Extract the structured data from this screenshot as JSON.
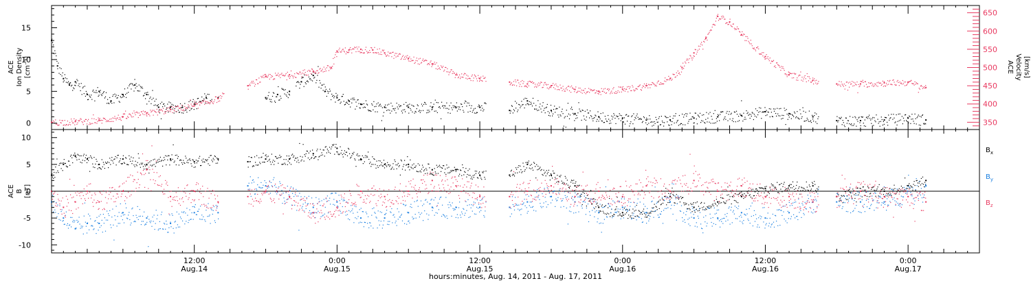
{
  "colors": {
    "density": "#000000",
    "velocity": "#e8385f",
    "bx": "#000000",
    "by": "#1a7fe0",
    "bz": "#e8385f"
  },
  "xaxis": {
    "title": "hours:minutes, Aug. 14, 2011 - Aug. 17, 2011",
    "range_hours": [
      0,
      78
    ],
    "ticks": [
      {
        "hour": 12,
        "time": "12:00",
        "date": "Aug.14"
      },
      {
        "hour": 24,
        "time": "0:00",
        "date": "Aug.15"
      },
      {
        "hour": 36,
        "time": "12:00",
        "date": "Aug.15"
      },
      {
        "hour": 48,
        "time": "0:00",
        "date": "Aug.16"
      },
      {
        "hour": 60,
        "time": "12:00",
        "date": "Aug.16"
      },
      {
        "hour": 72,
        "time": "0:00",
        "date": "Aug.17"
      }
    ]
  },
  "chart_data": [
    {
      "type": "scatter",
      "panel": "top",
      "ylabel_left": [
        "ACE",
        "Ion Density",
        "[cm⁻³]"
      ],
      "ylabel_right": [
        "ACE",
        "Velocity",
        "[km/s]"
      ],
      "ylim_left": [
        -1,
        18.5
      ],
      "ylim_right": [
        330,
        670
      ],
      "yticks_left": [
        0,
        5,
        10,
        15
      ],
      "yticks_right": [
        350,
        400,
        450,
        500,
        550,
        600,
        650
      ],
      "series": [
        {
          "key": "density",
          "axis": "left",
          "segments": [
            [
              0,
              13.5
            ],
            [
              18,
              20
            ],
            [
              20.5,
              36.5
            ],
            [
              38.5,
              64.5
            ],
            [
              66,
              73.5
            ]
          ],
          "x": [
            0,
            0.5,
            1,
            1.5,
            2,
            3,
            4,
            5,
            6,
            7,
            8,
            9,
            10,
            11,
            12,
            13,
            14,
            18,
            19,
            20,
            21,
            22,
            23,
            24,
            25,
            26,
            28,
            30,
            32,
            34,
            36,
            38.5,
            40,
            42,
            44,
            46,
            48,
            50,
            52,
            54,
            56,
            58,
            60,
            62,
            64,
            66,
            68,
            70,
            72,
            73.5
          ],
          "y": [
            13,
            9,
            7,
            6,
            6.5,
            4.5,
            5,
            3.5,
            4.5,
            6,
            4.5,
            2.5,
            2.5,
            2.5,
            3,
            4,
            4,
            4,
            4.5,
            5,
            6.5,
            7.5,
            5,
            4,
            3.5,
            3,
            2.5,
            2.5,
            2.5,
            2.5,
            2.5,
            2,
            3.5,
            2,
            1.5,
            1,
            0.8,
            0.5,
            0.5,
            0.8,
            1,
            1.2,
            1.8,
            1.5,
            1,
            0.4,
            0.4,
            0.5,
            0.8,
            0.5
          ]
        },
        {
          "key": "velocity",
          "axis": "right",
          "segments": [
            [
              0,
              14.5
            ],
            [
              16.5,
              36.5
            ],
            [
              38.5,
              64.5
            ],
            [
              66,
              73.5
            ]
          ],
          "x": [
            0,
            2,
            4,
            6,
            8,
            10,
            12,
            14,
            16.5,
            18,
            20,
            22,
            23.5,
            24,
            25,
            26,
            27,
            28,
            30,
            32,
            34,
            36,
            38.5,
            40,
            42,
            44,
            46,
            48,
            50,
            52,
            53,
            54,
            55,
            56,
            57,
            58,
            60,
            62,
            64,
            66,
            68,
            70,
            72,
            73.5
          ],
          "y": [
            350,
            352,
            355,
            365,
            375,
            385,
            395,
            415,
            450,
            475,
            480,
            490,
            500,
            545,
            548,
            550,
            548,
            540,
            525,
            510,
            480,
            470,
            460,
            455,
            450,
            440,
            435,
            440,
            450,
            470,
            500,
            540,
            580,
            640,
            625,
            590,
            530,
            480,
            465,
            455,
            455,
            458,
            460,
            445
          ]
        }
      ]
    },
    {
      "type": "scatter",
      "panel": "bottom",
      "ylabel_left": [
        "ACE",
        "B",
        "[nT]"
      ],
      "ylim": [
        -11.5,
        11.5
      ],
      "yticks": [
        -10,
        -5,
        0,
        5,
        10
      ],
      "zero_line": true,
      "legend": [
        {
          "key": "bx",
          "label": "B",
          "sub": "x"
        },
        {
          "key": "by",
          "label": "B",
          "sub": "y"
        },
        {
          "key": "bz",
          "label": "B",
          "sub": "z"
        }
      ],
      "series": [
        {
          "key": "bx",
          "segments": [
            [
              0,
              14
            ],
            [
              16.5,
              36.5
            ],
            [
              38.5,
              64.5
            ],
            [
              66,
              73.5
            ]
          ],
          "x": [
            0,
            1,
            2,
            3,
            4,
            6,
            8,
            10,
            12,
            14,
            16.5,
            18,
            20,
            22,
            24,
            26,
            28,
            30,
            32,
            34,
            36,
            38.5,
            40,
            42,
            44,
            46,
            48,
            50,
            52,
            54,
            56,
            58,
            60,
            62,
            64,
            66,
            68,
            70,
            72,
            73.5
          ],
          "y": [
            3,
            5,
            6.5,
            6,
            5,
            6,
            5,
            6,
            5.5,
            6,
            5.5,
            6,
            6,
            7,
            8,
            6,
            5,
            5,
            4,
            4,
            3,
            3,
            5,
            3,
            1,
            -3,
            -4,
            -4,
            -1,
            -3,
            -2,
            -1,
            0.5,
            1,
            1,
            -1,
            0,
            0,
            1,
            2
          ]
        },
        {
          "key": "by",
          "segments": [
            [
              0,
              14
            ],
            [
              16.5,
              36.5
            ],
            [
              38.5,
              64.5
            ],
            [
              66,
              73.5
            ]
          ],
          "x": [
            0,
            1,
            2,
            3,
            4,
            6,
            8,
            10,
            12,
            14,
            16.5,
            18,
            20,
            22,
            24,
            26,
            28,
            30,
            32,
            34,
            36,
            38.5,
            40,
            42,
            44,
            46,
            48,
            50,
            52,
            54,
            56,
            58,
            60,
            62,
            64,
            66,
            68,
            70,
            72,
            73.5
          ],
          "y": [
            -2,
            -5,
            -7,
            -6,
            -6,
            -4,
            -5,
            -6,
            -4,
            -4,
            1,
            1,
            -1,
            -3,
            -2,
            -5,
            -5,
            -4,
            -3,
            -3,
            -3,
            -3,
            -2,
            -1,
            -2,
            -4,
            -3,
            -4,
            -2,
            -5,
            -5,
            -4,
            -5,
            -4,
            -2,
            -2,
            -2,
            -2,
            0,
            1
          ]
        },
        {
          "key": "bz",
          "segments": [
            [
              0,
              14
            ],
            [
              16.5,
              36.5
            ],
            [
              38.5,
              64.5
            ],
            [
              66,
              73.5
            ]
          ],
          "x": [
            0,
            1,
            2,
            3,
            4,
            6,
            8,
            10,
            12,
            14,
            16.5,
            18,
            20,
            22,
            24,
            26,
            28,
            30,
            32,
            34,
            36,
            38.5,
            40,
            42,
            44,
            46,
            48,
            50,
            52,
            54,
            56,
            58,
            60,
            62,
            64,
            66,
            68,
            70,
            72,
            73.5
          ],
          "y": [
            0,
            -3,
            -2,
            0,
            -2,
            0,
            4,
            -1,
            0,
            -2,
            -1,
            0,
            -1,
            -4,
            -3,
            0,
            -1,
            0,
            2,
            1,
            -1,
            -1,
            0,
            1,
            -1,
            0,
            -1,
            1,
            0,
            2,
            0,
            1,
            -1,
            -1,
            -2,
            -1,
            0,
            -1,
            -1,
            -2
          ]
        }
      ]
    }
  ]
}
